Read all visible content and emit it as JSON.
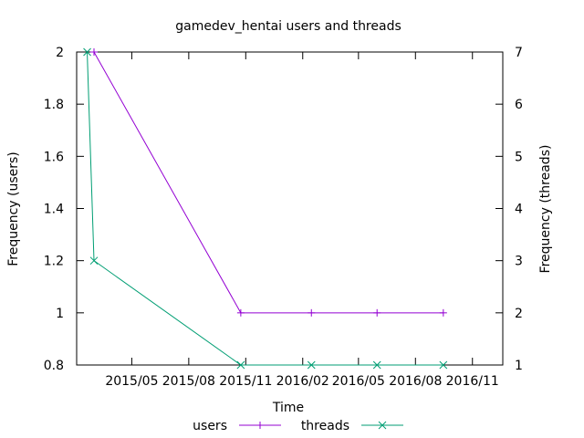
{
  "chart_data": {
    "type": "line",
    "title": "gamedev_hentai users and threads",
    "xlabel": "Time",
    "ylabel_left": "Frequency (users)",
    "ylabel_right": "Frequency (threads)",
    "x_ticks": [
      "2015/05",
      "2015/08",
      "2015/11",
      "2016/02",
      "2016/05",
      "2016/08",
      "2016/11"
    ],
    "x_tick_dates": [
      "2015-05-01",
      "2015-08-01",
      "2015-11-01",
      "2016-02-01",
      "2016-05-01",
      "2016-08-01",
      "2016-11-01"
    ],
    "xlim": [
      "2015-02-01",
      "2016-12-20"
    ],
    "y_left": {
      "ylim": [
        0.8,
        2
      ],
      "ticks": [
        0.8,
        1,
        1.2,
        1.4,
        1.6,
        1.8,
        2
      ],
      "tick_labels": [
        "0.8",
        "1",
        "1.2",
        "1.4",
        "1.6",
        "1.8",
        "2"
      ]
    },
    "y_right": {
      "ylim": [
        1,
        7
      ],
      "ticks": [
        1,
        2,
        3,
        4,
        5,
        6,
        7
      ],
      "tick_labels": [
        "1",
        "2",
        "3",
        "4",
        "5",
        "6",
        "7"
      ]
    },
    "grid": false,
    "legend": "bottom",
    "series": [
      {
        "name": "users",
        "axis": "left",
        "color": "#9400d3",
        "marker": "plus",
        "points": [
          {
            "x": "2015-03-01",
            "y": 2
          },
          {
            "x": "2015-10-24",
            "y": 1
          },
          {
            "x": "2016-02-15",
            "y": 1
          },
          {
            "x": "2016-05-31",
            "y": 1
          },
          {
            "x": "2016-09-15",
            "y": 1
          }
        ]
      },
      {
        "name": "threads",
        "axis": "right",
        "color": "#009e73",
        "marker": "cross",
        "points": [
          {
            "x": "2015-02-18",
            "y": 7
          },
          {
            "x": "2015-03-01",
            "y": 3
          },
          {
            "x": "2015-10-24",
            "y": 1
          },
          {
            "x": "2016-02-15",
            "y": 1
          },
          {
            "x": "2016-05-31",
            "y": 1
          },
          {
            "x": "2016-09-15",
            "y": 1
          }
        ]
      }
    ]
  }
}
